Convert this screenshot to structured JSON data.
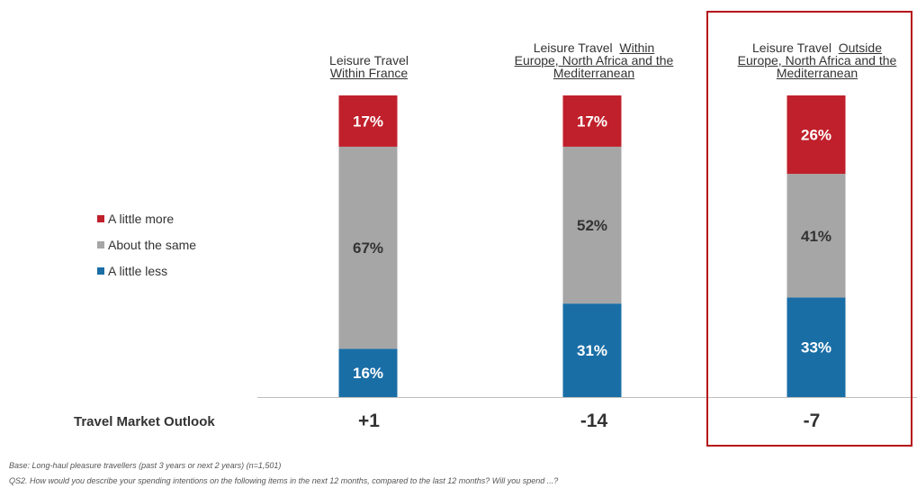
{
  "chart_data": {
    "type": "bar",
    "stacked": true,
    "categories": [
      {
        "prefix": "Leisure Travel",
        "underlined": "Within France"
      },
      {
        "prefix": "Leisure Travel",
        "underlined": "Within Europe, North Africa and the Mediterranean"
      },
      {
        "prefix": "Leisure Travel",
        "underlined": "Outside Europe, North Africa and the Mediterranean"
      }
    ],
    "series": [
      {
        "name": "A little less",
        "color": "#1a6ea6",
        "values": [
          16,
          31,
          33
        ]
      },
      {
        "name": "About the same",
        "color": "#a6a6a6",
        "values": [
          67,
          52,
          41
        ]
      },
      {
        "name": "A little more",
        "color": "#c0202b",
        "values": [
          17,
          17,
          26
        ]
      }
    ],
    "value_labels": {
      "A little more": [
        "17%",
        "17%",
        "26%"
      ],
      "About the same": [
        "67%",
        "52%",
        "41%"
      ],
      "A little less": [
        "16%",
        "31%",
        "33%"
      ]
    },
    "legend_order": [
      "A little more",
      "About the same",
      "A little less"
    ],
    "legend_position": "left",
    "highlighted_category_index": 2,
    "highlight_color": "#b5121b"
  },
  "outlook": {
    "label": "Travel Market Outlook",
    "values": [
      "+1",
      "-14",
      "-7"
    ]
  },
  "footnotes": {
    "base": "Base: Long-haul pleasure travellers (past 3 years or next 2 years) (n=1,501)",
    "question": "QS2. How would you describe your spending intentions on the following items in the next 12 months, compared to the last 12 months? Will you spend ...?"
  }
}
